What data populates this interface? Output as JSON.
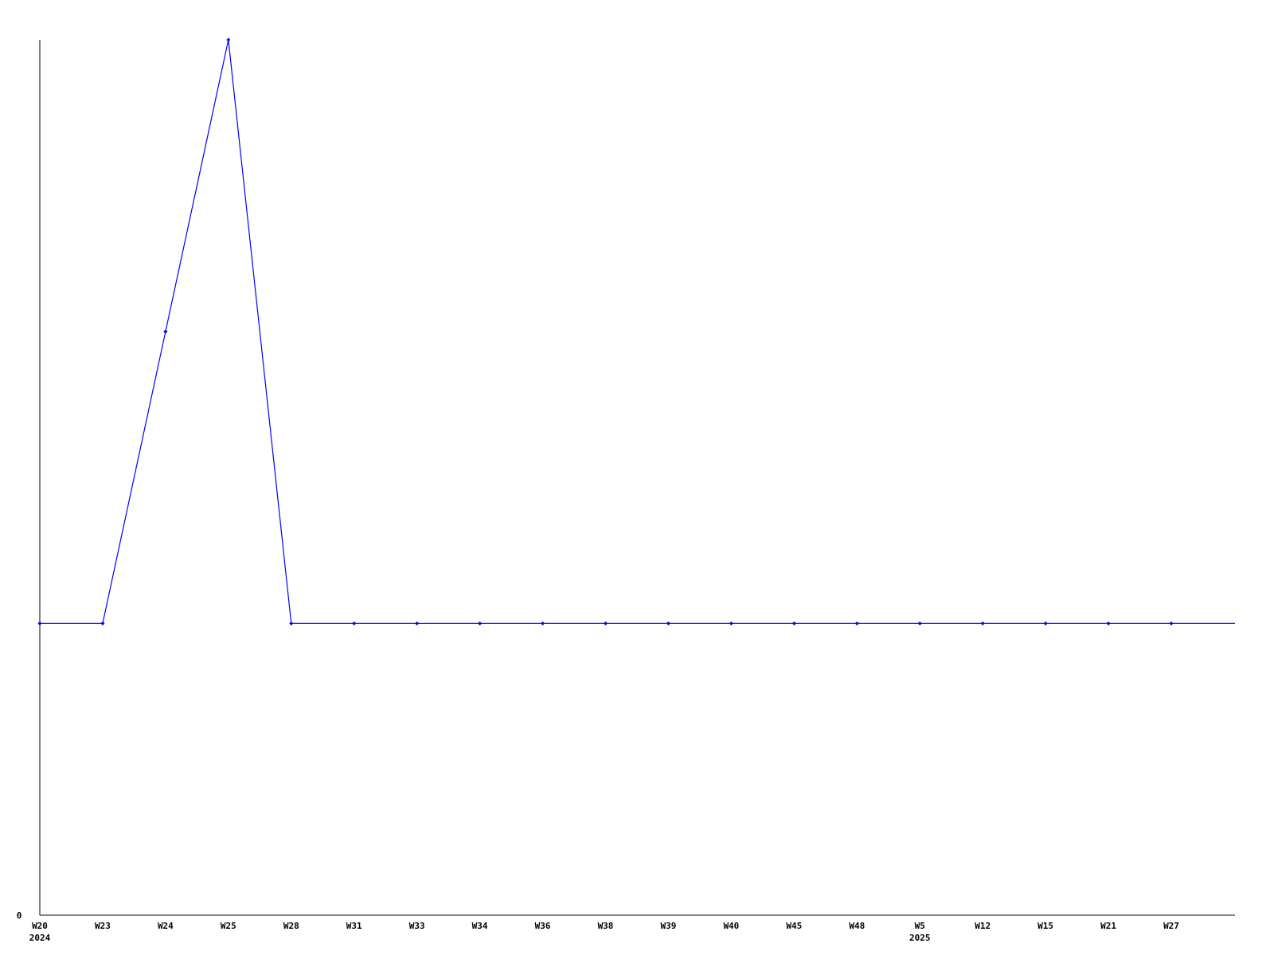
{
  "chart_data": {
    "type": "line",
    "title": "",
    "xlabel": "",
    "ylabel": "",
    "categories": [
      "W20",
      "W23",
      "W24",
      "W25",
      "W28",
      "W31",
      "W33",
      "W34",
      "W36",
      "W38",
      "W39",
      "W40",
      "W45",
      "W48",
      "W5",
      "W12",
      "W15",
      "W21",
      "W27"
    ],
    "year_labels": [
      {
        "category": "W20",
        "label": "2024"
      },
      {
        "category": "W5",
        "label": "2025"
      }
    ],
    "series": [
      {
        "values": [
          1,
          1,
          2,
          3,
          1,
          1,
          1,
          1,
          1,
          1,
          1,
          1,
          1,
          1,
          1,
          1,
          1,
          1,
          1
        ]
      }
    ],
    "y_tick_labels": [
      "0"
    ],
    "ylim": [
      0,
      3
    ],
    "grid": false,
    "line_color": "#0000ff",
    "axis_color": "#000000"
  }
}
